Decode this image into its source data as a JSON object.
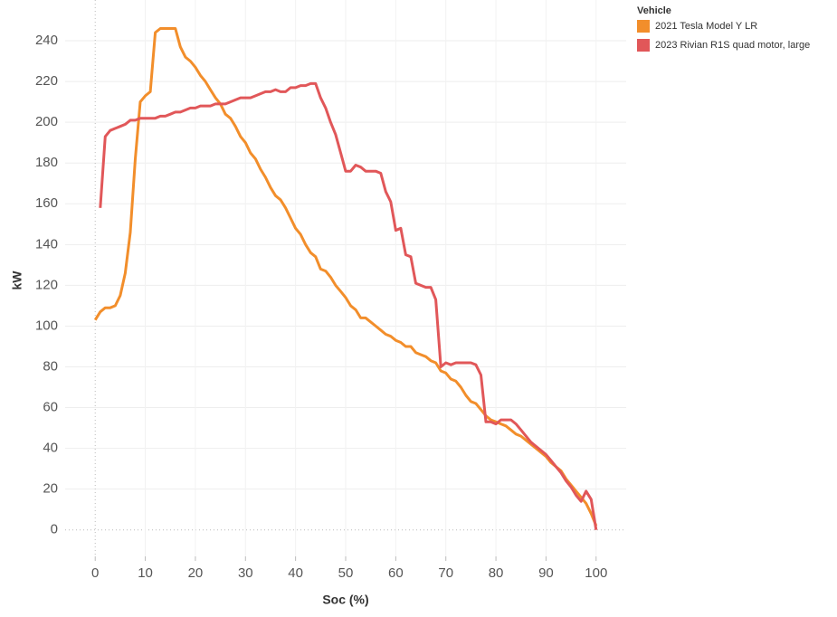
{
  "chart_data": {
    "type": "line",
    "x_label": "Soc (%)",
    "y_label": "kW",
    "legend_title": "Vehicle",
    "legend": "top-right",
    "grid": true,
    "xlim": [
      -6,
      106
    ],
    "ylim": [
      -13,
      260
    ],
    "xticks": [
      0,
      10,
      20,
      30,
      40,
      50,
      60,
      70,
      80,
      90,
      100
    ],
    "yticks": [
      0,
      20,
      40,
      60,
      80,
      100,
      120,
      140,
      160,
      180,
      200,
      220,
      240
    ],
    "series": [
      {
        "name": "2021 Tesla Model Y LR",
        "color": "#f28e2b",
        "x": [
          0,
          1,
          2,
          3,
          4,
          5,
          6,
          7,
          8,
          9,
          10,
          11,
          12,
          13,
          14,
          15,
          16,
          17,
          18,
          19,
          20,
          21,
          22,
          23,
          24,
          25,
          26,
          27,
          28,
          29,
          30,
          31,
          32,
          33,
          34,
          35,
          36,
          37,
          38,
          39,
          40,
          41,
          42,
          43,
          44,
          45,
          46,
          47,
          48,
          49,
          50,
          51,
          52,
          53,
          54,
          55,
          56,
          57,
          58,
          59,
          60,
          61,
          62,
          63,
          64,
          65,
          66,
          67,
          68,
          69,
          70,
          71,
          72,
          73,
          74,
          75,
          76,
          77,
          78,
          79,
          80,
          81,
          82,
          83,
          84,
          85,
          86,
          87,
          88,
          89,
          90,
          91,
          92,
          93,
          94,
          95,
          96,
          97,
          98,
          99,
          100
        ],
        "values": [
          103,
          107,
          109,
          109,
          110,
          115,
          126,
          146,
          182,
          210,
          213,
          215,
          244,
          246,
          246,
          246,
          246,
          237,
          232,
          230,
          227,
          223,
          220,
          216,
          212,
          209,
          204,
          202,
          198,
          193,
          190,
          185,
          182,
          177,
          173,
          168,
          164,
          162,
          158,
          153,
          148,
          145,
          140,
          136,
          134,
          128,
          127,
          124,
          120,
          117,
          114,
          110,
          108,
          104,
          104,
          102,
          100,
          98,
          96,
          95,
          93,
          92,
          90,
          90,
          87,
          86,
          85,
          83,
          82,
          78,
          77,
          74,
          73,
          70,
          66,
          63,
          62,
          59,
          56,
          54,
          53,
          52,
          51,
          49,
          47,
          46,
          44,
          42,
          40,
          38,
          36,
          33,
          31,
          29,
          25,
          22,
          19,
          16,
          13,
          8,
          2
        ]
      },
      {
        "name": "2023 Rivian R1S quad motor, large",
        "color": "#e15759",
        "x": [
          1,
          2,
          3,
          4,
          5,
          6,
          7,
          8,
          9,
          10,
          11,
          12,
          13,
          14,
          15,
          16,
          17,
          18,
          19,
          20,
          21,
          22,
          23,
          24,
          25,
          26,
          27,
          28,
          29,
          30,
          31,
          32,
          33,
          34,
          35,
          36,
          37,
          38,
          39,
          40,
          41,
          42,
          43,
          44,
          45,
          46,
          47,
          48,
          49,
          50,
          51,
          52,
          53,
          54,
          55,
          56,
          57,
          58,
          59,
          60,
          61,
          62,
          63,
          64,
          65,
          66,
          67,
          68,
          69,
          70,
          71,
          72,
          73,
          74,
          75,
          76,
          77,
          78,
          79,
          80,
          81,
          82,
          83,
          84,
          85,
          86,
          87,
          88,
          89,
          90,
          91,
          92,
          93,
          94,
          95,
          96,
          97,
          98,
          99,
          100
        ],
        "values": [
          158,
          193,
          196,
          197,
          198,
          199,
          201,
          201,
          202,
          202,
          202,
          202,
          203,
          203,
          204,
          205,
          205,
          206,
          207,
          207,
          208,
          208,
          208,
          209,
          209,
          209,
          210,
          211,
          212,
          212,
          212,
          213,
          214,
          215,
          215,
          216,
          215,
          215,
          217,
          217,
          218,
          218,
          219,
          219,
          212,
          207,
          200,
          194,
          185,
          176,
          176,
          179,
          178,
          176,
          176,
          176,
          175,
          166,
          161,
          147,
          148,
          135,
          134,
          121,
          120,
          119,
          119,
          113,
          80,
          82,
          81,
          82,
          82,
          82,
          82,
          81,
          76,
          53,
          53,
          52,
          54,
          54,
          54,
          52,
          49,
          46,
          43,
          41,
          39,
          37,
          34,
          31,
          28,
          24,
          21,
          17,
          14,
          19,
          15,
          0
        ]
      }
    ]
  }
}
